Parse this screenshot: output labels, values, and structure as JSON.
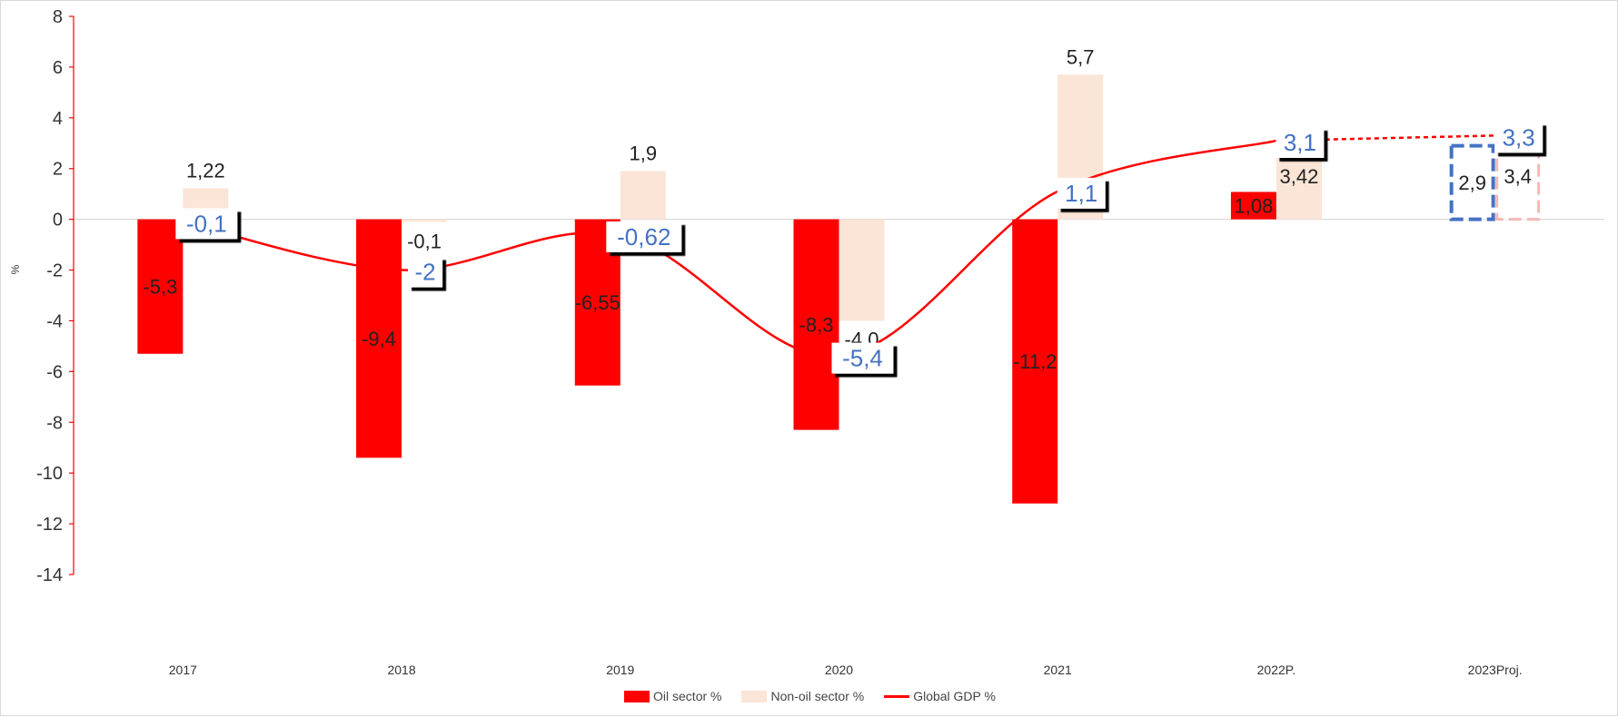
{
  "chart_data": {
    "type": "bar",
    "ylabel": "%",
    "ylim": [
      -14,
      8
    ],
    "yticks": [
      -14,
      -12,
      -10,
      -8,
      -6,
      -4,
      -2,
      0,
      2,
      4,
      6,
      8
    ],
    "categories": [
      "2017",
      "2018",
      "2019",
      "2020",
      "2021",
      "2022P.",
      "2023Proj."
    ],
    "series": [
      {
        "name": "Oil sector %",
        "kind": "bar",
        "color": "#ff0000",
        "values": [
          -5.3,
          -9.4,
          -6.55,
          -8.3,
          -11.2,
          1.08,
          2.9
        ],
        "labels": [
          "-5,3",
          "-9,4",
          "-6,55",
          "-8,3",
          "-11,2",
          "1,08",
          "2,9"
        ],
        "projected": [
          false,
          false,
          false,
          false,
          false,
          false,
          true
        ]
      },
      {
        "name": "Non-oil sector %",
        "kind": "bar",
        "color": "#fbe5d6",
        "values": [
          1.22,
          -0.1,
          1.9,
          -4.0,
          5.7,
          3.42,
          3.4
        ],
        "labels": [
          "1,22",
          "-0,1",
          "1,9",
          "-4,0",
          "5,7",
          "3,42",
          "3,4"
        ],
        "projected": [
          false,
          false,
          false,
          false,
          false,
          false,
          true
        ]
      },
      {
        "name": "Global GDP %",
        "kind": "line",
        "color": "#ff0000",
        "values": [
          -0.1,
          -2.0,
          -0.62,
          -5.4,
          1.1,
          3.1,
          3.3
        ],
        "labels": [
          "-0,1",
          "-2",
          "-0,62",
          "-5,4",
          "1,1",
          "3,1",
          "3,3"
        ],
        "projected_from_index": 5
      }
    ],
    "grid": false,
    "legend": "bottom"
  },
  "colors": {
    "axis": "#ff0000",
    "zero_line": "#d9d9d9",
    "gdp_label": "#4472c4",
    "projected_oil_outline": "#4472c4",
    "projected_nonoil_outline": "#f4b8b8"
  }
}
